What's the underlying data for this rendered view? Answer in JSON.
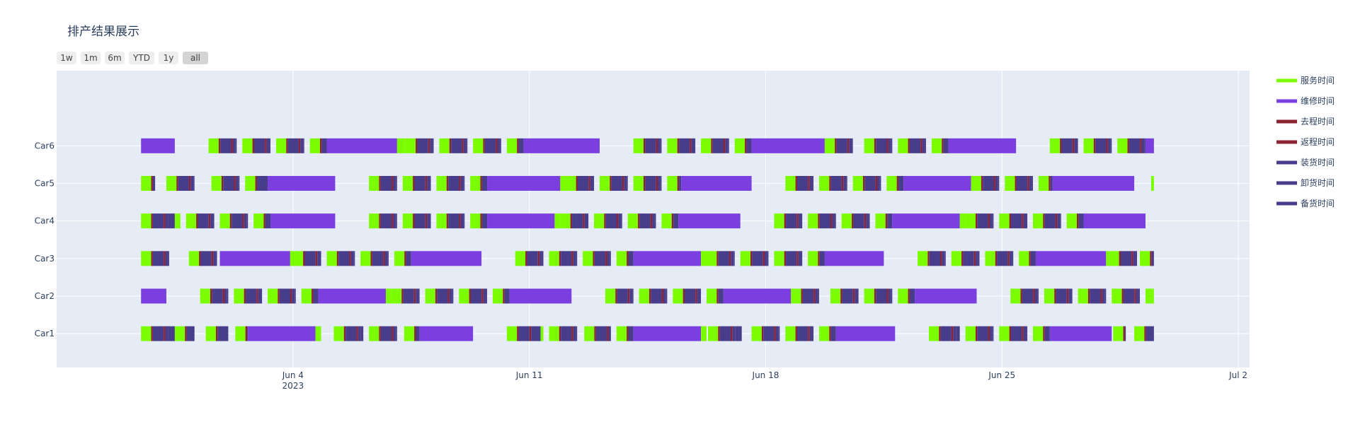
{
  "chart_data": {
    "type": "gantt",
    "title": "排产结果展示",
    "range_selector": [
      "1w",
      "1m",
      "6m",
      "YTD",
      "1y",
      "all"
    ],
    "range_selector_active": "all",
    "x_axis": {
      "type": "date",
      "range": [
        "2023-05-28",
        "2023-07-02T08:00"
      ],
      "ticks": [
        {
          "value": "2023-06-04",
          "label": "Jun 4",
          "sublabel": "2023"
        },
        {
          "value": "2023-06-11",
          "label": "Jun 11",
          "sublabel": ""
        },
        {
          "value": "2023-06-18",
          "label": "Jun 18",
          "sublabel": ""
        },
        {
          "value": "2023-06-25",
          "label": "Jun 25",
          "sublabel": ""
        },
        {
          "value": "2023-07-02",
          "label": "Jul 2",
          "sublabel": ""
        }
      ]
    },
    "y_axis": {
      "categories": [
        "Car1",
        "Car2",
        "Car3",
        "Car4",
        "Car5",
        "Car6"
      ]
    },
    "legend_position": "right",
    "colors": {
      "service": "#7CFC00",
      "repair": "#7B3FE0",
      "outbound": "#8B2332",
      "return": "#8B2332",
      "loading": "#483D8B",
      "unloading": "#483D8B",
      "standby": "#483D8B",
      "plot_bg": "#E5ECF6",
      "grid": "#ffffff",
      "title": "#2a3f5f"
    },
    "series": [
      {
        "name": "服务时间",
        "key": "service"
      },
      {
        "name": "维修时间",
        "key": "repair"
      },
      {
        "name": "去程时间",
        "key": "outbound"
      },
      {
        "name": "返程时间",
        "key": "return"
      },
      {
        "name": "装货时间",
        "key": "loading"
      },
      {
        "name": "卸货时间",
        "key": "unloading"
      },
      {
        "name": "备货时间",
        "key": "standby"
      }
    ],
    "schedule_start": "2023-05-30T12:00",
    "schedule_end": "2023-06-29T12:00",
    "cycle_days": 1.0,
    "cycle_pattern": [
      {
        "kind": "service",
        "days": 0.3
      },
      {
        "kind": "outbound",
        "days": 0.05
      },
      {
        "kind": "standby",
        "days": 0.32
      },
      {
        "kind": "return",
        "days": 0.05
      },
      {
        "kind": "loading",
        "days": 0.08
      }
    ],
    "tasks": [
      {
        "car": "Car1",
        "blocks": [
          {
            "start": "2023-05-30T12:00",
            "end": "2023-06-01T02:00"
          },
          {
            "start": "2023-06-01T10:00",
            "end": "2023-06-02T02:00"
          },
          {
            "start": "2023-06-02T07:00",
            "end": "2023-06-04T20:00",
            "repair": [
              "2023-06-02T16:00",
              "2023-06-04T16:00"
            ]
          },
          {
            "start": "2023-06-05T05:00",
            "end": "2023-06-06T02:00"
          },
          {
            "start": "2023-06-06T06:00",
            "end": "2023-06-07T02:00"
          },
          {
            "start": "2023-06-07T07:00",
            "end": "2023-06-09T08:00",
            "repair": [
              "2023-06-07T18:00",
              "2023-06-09T08:00"
            ]
          },
          {
            "start": "2023-06-10T08:00",
            "end": "2023-06-11T10:00"
          },
          {
            "start": "2023-06-11T14:00",
            "end": "2023-06-12T10:00"
          },
          {
            "start": "2023-06-12T15:00",
            "end": "2023-06-13T10:00"
          },
          {
            "start": "2023-06-13T14:00",
            "end": "2023-06-16T06:00",
            "repair": [
              "2023-06-14T02:00",
              "2023-06-16T02:00"
            ]
          },
          {
            "start": "2023-06-16T07:00",
            "end": "2023-06-17T07:00"
          },
          {
            "start": "2023-06-17T14:00",
            "end": "2023-06-18T10:00"
          },
          {
            "start": "2023-06-18T14:00",
            "end": "2023-06-19T10:00"
          },
          {
            "start": "2023-06-19T14:00",
            "end": "2023-06-21T20:00",
            "repair": [
              "2023-06-20T02:00",
              "2023-06-21T20:00"
            ]
          },
          {
            "start": "2023-06-22T20:00",
            "end": "2023-06-23T18:00"
          },
          {
            "start": "2023-06-23T22:00",
            "end": "2023-06-24T18:00"
          },
          {
            "start": "2023-06-24T22:00",
            "end": "2023-06-25T18:00"
          },
          {
            "start": "2023-06-25T22:00",
            "end": "2023-06-28T06:00",
            "repair": [
              "2023-06-26T10:00",
              "2023-06-28T06:00"
            ]
          },
          {
            "start": "2023-06-28T07:00",
            "end": "2023-06-28T16:00"
          },
          {
            "start": "2023-06-28T22:00",
            "end": "2023-06-29T12:00"
          }
        ]
      },
      {
        "car": "Car2",
        "blocks": [
          {
            "start": "2023-05-30T12:00",
            "end": "2023-05-31T06:00",
            "repair": [
              "2023-05-30T12:00",
              "2023-05-31T06:00"
            ]
          },
          {
            "start": "2023-06-01T06:00",
            "end": "2023-06-02T02:00"
          },
          {
            "start": "2023-06-02T06:00",
            "end": "2023-06-03T02:00"
          },
          {
            "start": "2023-06-03T06:00",
            "end": "2023-06-04T02:00"
          },
          {
            "start": "2023-06-04T06:00",
            "end": "2023-06-06T22:00",
            "repair": [
              "2023-06-04T18:00",
              "2023-06-06T18:00"
            ]
          },
          {
            "start": "2023-06-06T22:00",
            "end": "2023-06-07T18:00"
          },
          {
            "start": "2023-06-07T22:00",
            "end": "2023-06-08T18:00"
          },
          {
            "start": "2023-06-08T22:00",
            "end": "2023-06-09T18:00"
          },
          {
            "start": "2023-06-09T22:00",
            "end": "2023-06-12T06:00",
            "repair": [
              "2023-06-10T10:00",
              "2023-06-12T06:00"
            ]
          },
          {
            "start": "2023-06-13T06:00",
            "end": "2023-06-14T02:00"
          },
          {
            "start": "2023-06-14T06:00",
            "end": "2023-06-15T02:00"
          },
          {
            "start": "2023-06-15T06:00",
            "end": "2023-06-16T02:00"
          },
          {
            "start": "2023-06-16T06:00",
            "end": "2023-06-18T22:00",
            "repair": [
              "2023-06-16T18:00",
              "2023-06-18T18:00"
            ]
          },
          {
            "start": "2023-06-18T18:00",
            "end": "2023-06-19T14:00"
          },
          {
            "start": "2023-06-19T22:00",
            "end": "2023-06-20T18:00"
          },
          {
            "start": "2023-06-20T22:00",
            "end": "2023-06-21T18:00"
          },
          {
            "start": "2023-06-21T22:00",
            "end": "2023-06-24T06:00",
            "repair": [
              "2023-06-22T10:00",
              "2023-06-24T06:00"
            ]
          },
          {
            "start": "2023-06-25T06:00",
            "end": "2023-06-26T02:00"
          },
          {
            "start": "2023-06-26T06:00",
            "end": "2023-06-27T02:00"
          },
          {
            "start": "2023-06-27T06:00",
            "end": "2023-06-28T02:00"
          },
          {
            "start": "2023-06-28T06:00",
            "end": "2023-06-29T02:00"
          },
          {
            "start": "2023-06-29T06:00",
            "end": "2023-06-29T12:00"
          }
        ]
      },
      {
        "car": "Car3",
        "blocks": [
          {
            "start": "2023-05-30T12:00",
            "end": "2023-05-31T08:00"
          },
          {
            "start": "2023-05-31T22:00",
            "end": "2023-06-01T18:00"
          },
          {
            "start": "2023-06-01T20:00",
            "end": "2023-06-04T02:00",
            "repair": [
              "2023-06-01T20:00",
              "2023-06-03T22:00"
            ]
          },
          {
            "start": "2023-06-04T00:00",
            "end": "2023-06-04T20:00"
          },
          {
            "start": "2023-06-05T00:00",
            "end": "2023-06-05T20:00"
          },
          {
            "start": "2023-06-06T00:00",
            "end": "2023-06-06T20:00"
          },
          {
            "start": "2023-06-07T00:00",
            "end": "2023-06-09T14:00",
            "repair": [
              "2023-06-07T12:00",
              "2023-06-09T14:00"
            ]
          },
          {
            "start": "2023-06-10T14:00",
            "end": "2023-06-11T10:00"
          },
          {
            "start": "2023-06-11T14:00",
            "end": "2023-06-12T10:00"
          },
          {
            "start": "2023-06-12T14:00",
            "end": "2023-06-13T10:00"
          },
          {
            "start": "2023-06-13T14:00",
            "end": "2023-06-16T06:00",
            "repair": [
              "2023-06-14T02:00",
              "2023-06-16T02:00"
            ]
          },
          {
            "start": "2023-06-16T06:00",
            "end": "2023-06-17T02:00"
          },
          {
            "start": "2023-06-17T06:00",
            "end": "2023-06-18T02:00"
          },
          {
            "start": "2023-06-18T06:00",
            "end": "2023-06-19T02:00"
          },
          {
            "start": "2023-06-19T06:00",
            "end": "2023-06-21T12:00",
            "repair": [
              "2023-06-19T18:00",
              "2023-06-21T12:00"
            ]
          },
          {
            "start": "2023-06-22T12:00",
            "end": "2023-06-23T08:00"
          },
          {
            "start": "2023-06-23T12:00",
            "end": "2023-06-24T08:00"
          },
          {
            "start": "2023-06-24T12:00",
            "end": "2023-06-25T08:00"
          },
          {
            "start": "2023-06-25T12:00",
            "end": "2023-06-28T04:00",
            "repair": [
              "2023-06-26T00:00",
              "2023-06-28T02:00"
            ]
          },
          {
            "start": "2023-06-28T04:00",
            "end": "2023-06-29T00:00"
          },
          {
            "start": "2023-06-29T02:00",
            "end": "2023-06-29T12:00"
          }
        ]
      },
      {
        "car": "Car4",
        "blocks": [
          {
            "start": "2023-05-30T12:00",
            "end": "2023-05-31T16:00"
          },
          {
            "start": "2023-05-31T20:00",
            "end": "2023-06-01T16:00"
          },
          {
            "start": "2023-06-01T20:00",
            "end": "2023-06-02T16:00"
          },
          {
            "start": "2023-06-02T20:00",
            "end": "2023-06-05T06:00",
            "repair": [
              "2023-06-03T08:00",
              "2023-06-05T06:00"
            ]
          },
          {
            "start": "2023-06-06T06:00",
            "end": "2023-06-07T02:00"
          },
          {
            "start": "2023-06-07T06:00",
            "end": "2023-06-08T02:00"
          },
          {
            "start": "2023-06-08T06:00",
            "end": "2023-06-09T02:00"
          },
          {
            "start": "2023-06-09T06:00",
            "end": "2023-06-11T22:00",
            "repair": [
              "2023-06-09T18:00",
              "2023-06-11T18:00"
            ]
          },
          {
            "start": "2023-06-11T22:00",
            "end": "2023-06-12T18:00"
          },
          {
            "start": "2023-06-12T22:00",
            "end": "2023-06-13T18:00"
          },
          {
            "start": "2023-06-13T22:00",
            "end": "2023-06-14T18:00"
          },
          {
            "start": "2023-06-14T22:00",
            "end": "2023-06-17T06:00",
            "repair": [
              "2023-06-15T10:00",
              "2023-06-17T06:00"
            ]
          },
          {
            "start": "2023-06-18T06:00",
            "end": "2023-06-19T02:00"
          },
          {
            "start": "2023-06-19T06:00",
            "end": "2023-06-20T02:00"
          },
          {
            "start": "2023-06-20T06:00",
            "end": "2023-06-21T02:00"
          },
          {
            "start": "2023-06-21T06:00",
            "end": "2023-06-23T22:00",
            "repair": [
              "2023-06-21T18:00",
              "2023-06-23T18:00"
            ]
          },
          {
            "start": "2023-06-23T22:00",
            "end": "2023-06-24T18:00"
          },
          {
            "start": "2023-06-24T22:00",
            "end": "2023-06-25T18:00"
          },
          {
            "start": "2023-06-25T22:00",
            "end": "2023-06-26T18:00"
          },
          {
            "start": "2023-06-26T22:00",
            "end": "2023-06-29T06:00",
            "repair": [
              "2023-06-27T10:00",
              "2023-06-29T06:00"
            ]
          }
        ]
      },
      {
        "car": "Car5",
        "blocks": [
          {
            "start": "2023-05-30T12:00",
            "end": "2023-05-30T22:00"
          },
          {
            "start": "2023-05-31T06:00",
            "end": "2023-06-01T02:00"
          },
          {
            "start": "2023-06-01T14:00",
            "end": "2023-06-02T10:00"
          },
          {
            "start": "2023-06-02T14:00",
            "end": "2023-06-05T06:00",
            "repair": [
              "2023-06-03T06:00",
              "2023-06-05T06:00"
            ]
          },
          {
            "start": "2023-06-06T06:00",
            "end": "2023-06-07T02:00"
          },
          {
            "start": "2023-06-07T06:00",
            "end": "2023-06-08T02:00"
          },
          {
            "start": "2023-06-08T06:00",
            "end": "2023-06-09T02:00"
          },
          {
            "start": "2023-06-09T06:00",
            "end": "2023-06-12T04:00",
            "repair": [
              "2023-06-09T18:00",
              "2023-06-11T22:00"
            ]
          },
          {
            "start": "2023-06-12T02:00",
            "end": "2023-06-12T22:00"
          },
          {
            "start": "2023-06-13T02:00",
            "end": "2023-06-13T22:00"
          },
          {
            "start": "2023-06-14T02:00",
            "end": "2023-06-14T22:00"
          },
          {
            "start": "2023-06-15T02:00",
            "end": "2023-06-17T14:00",
            "repair": [
              "2023-06-15T12:00",
              "2023-06-17T14:00"
            ]
          },
          {
            "start": "2023-06-18T14:00",
            "end": "2023-06-19T10:00"
          },
          {
            "start": "2023-06-19T14:00",
            "end": "2023-06-20T10:00"
          },
          {
            "start": "2023-06-20T14:00",
            "end": "2023-06-21T10:00"
          },
          {
            "start": "2023-06-21T14:00",
            "end": "2023-06-24T02:00",
            "repair": [
              "2023-06-22T02:00",
              "2023-06-24T02:00"
            ]
          },
          {
            "start": "2023-06-24T02:00",
            "end": "2023-06-24T22:00"
          },
          {
            "start": "2023-06-25T02:00",
            "end": "2023-06-25T22:00"
          },
          {
            "start": "2023-06-26T02:00",
            "end": "2023-06-28T22:00",
            "repair": [
              "2023-06-26T12:00",
              "2023-06-28T22:00"
            ]
          },
          {
            "start": "2023-06-29T10:00",
            "end": "2023-06-29T12:00"
          }
        ]
      },
      {
        "car": "Car6",
        "blocks": [
          {
            "start": "2023-05-30T12:00",
            "end": "2023-05-31T12:00",
            "repair": [
              "2023-05-30T12:00",
              "2023-05-31T12:00"
            ]
          },
          {
            "start": "2023-06-01T12:00",
            "end": "2023-06-02T08:00"
          },
          {
            "start": "2023-06-02T12:00",
            "end": "2023-06-03T08:00"
          },
          {
            "start": "2023-06-03T12:00",
            "end": "2023-06-04T08:00"
          },
          {
            "start": "2023-06-04T12:00",
            "end": "2023-06-07T08:00",
            "repair": [
              "2023-06-05T00:00",
              "2023-06-07T02:00"
            ]
          },
          {
            "start": "2023-06-07T08:00",
            "end": "2023-06-08T04:00"
          },
          {
            "start": "2023-06-08T08:00",
            "end": "2023-06-09T04:00"
          },
          {
            "start": "2023-06-09T08:00",
            "end": "2023-06-10T04:00"
          },
          {
            "start": "2023-06-10T08:00",
            "end": "2023-06-13T02:00",
            "repair": [
              "2023-06-10T20:00",
              "2023-06-13T02:00"
            ]
          },
          {
            "start": "2023-06-14T02:00",
            "end": "2023-06-14T22:00"
          },
          {
            "start": "2023-06-15T02:00",
            "end": "2023-06-15T22:00"
          },
          {
            "start": "2023-06-16T02:00",
            "end": "2023-06-16T22:00"
          },
          {
            "start": "2023-06-17T02:00",
            "end": "2023-06-20T02:00",
            "repair": [
              "2023-06-17T14:00",
              "2023-06-19T18:00"
            ]
          },
          {
            "start": "2023-06-19T18:00",
            "end": "2023-06-20T14:00"
          },
          {
            "start": "2023-06-20T22:00",
            "end": "2023-06-21T18:00"
          },
          {
            "start": "2023-06-21T22:00",
            "end": "2023-06-22T18:00"
          },
          {
            "start": "2023-06-22T22:00",
            "end": "2023-06-25T10:00",
            "repair": [
              "2023-06-23T10:00",
              "2023-06-25T10:00"
            ]
          },
          {
            "start": "2023-06-26T10:00",
            "end": "2023-06-27T06:00"
          },
          {
            "start": "2023-06-27T10:00",
            "end": "2023-06-28T06:00"
          },
          {
            "start": "2023-06-28T10:00",
            "end": "2023-06-29T06:00"
          },
          {
            "start": "2023-06-29T06:00",
            "end": "2023-06-29T12:00",
            "repair": [
              "2023-06-29T06:00",
              "2023-06-29T12:00"
            ]
          }
        ]
      }
    ]
  }
}
